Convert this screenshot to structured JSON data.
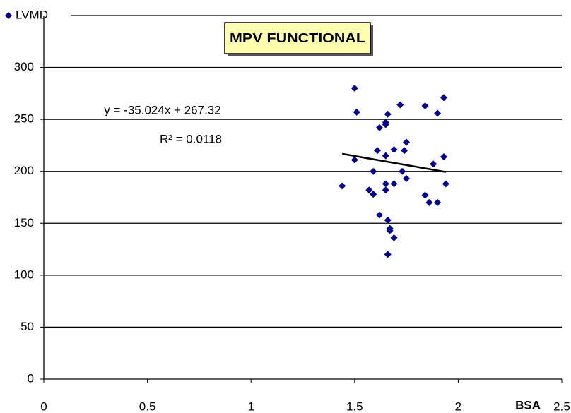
{
  "chart_data": {
    "type": "scatter",
    "title": "MPV FUNCTIONAL",
    "x_label": "BSA",
    "series": [
      {
        "name": "LVMD",
        "color": "#00008b",
        "x": [
          1.44,
          1.5,
          1.51,
          1.5,
          1.57,
          1.59,
          1.59,
          1.61,
          1.62,
          1.62,
          1.65,
          1.65,
          1.65,
          1.65,
          1.65,
          1.66,
          1.66,
          1.67,
          1.67,
          1.66,
          1.69,
          1.69,
          1.69,
          1.72,
          1.73,
          1.74,
          1.75,
          1.75,
          1.84,
          1.84,
          1.86,
          1.88,
          1.9,
          1.9,
          1.93,
          1.93,
          1.94
        ],
        "values": [
          186,
          280,
          257,
          211,
          182,
          178,
          200,
          220,
          242,
          158,
          245,
          247,
          215,
          188,
          182,
          255,
          153,
          145,
          143,
          120,
          136,
          188,
          221,
          264,
          200,
          220,
          193,
          228,
          263,
          177,
          170,
          207,
          256,
          170,
          271,
          214,
          188
        ]
      }
    ],
    "trendline": {
      "equation": "y = -35.024x + 267.32",
      "r_squared": "R² = 0.0118",
      "slope": -35.024,
      "intercept": 267.32
    },
    "xlim": [
      0,
      2.5
    ],
    "xticks": [
      0,
      0.5,
      1,
      1.5,
      2,
      2.5
    ],
    "ylim": [
      0,
      350
    ],
    "yticks": [
      0,
      50,
      100,
      150,
      200,
      250,
      300
    ],
    "grid": true
  }
}
